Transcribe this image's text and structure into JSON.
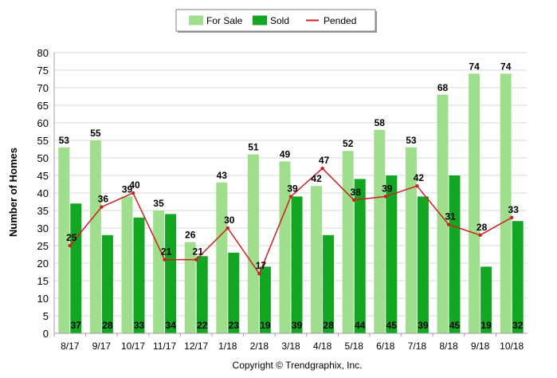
{
  "chart_data": {
    "type": "bar",
    "categories": [
      "8/17",
      "9/17",
      "10/17",
      "11/17",
      "12/17",
      "1/18",
      "2/18",
      "3/18",
      "4/18",
      "5/18",
      "6/18",
      "7/18",
      "8/18",
      "9/18",
      "10/18"
    ],
    "series": [
      {
        "name": "For Sale",
        "type": "bar",
        "color": "#9fde8c",
        "values": [
          53,
          55,
          39,
          35,
          26,
          43,
          51,
          49,
          42,
          52,
          58,
          53,
          68,
          74,
          74
        ]
      },
      {
        "name": "Sold",
        "type": "bar",
        "color": "#13a622",
        "values": [
          37,
          28,
          33,
          34,
          22,
          23,
          19,
          39,
          28,
          44,
          45,
          39,
          45,
          19,
          32
        ]
      },
      {
        "name": "Pended",
        "type": "line",
        "color": "#cc1f1f",
        "values": [
          25,
          36,
          40,
          21,
          21,
          30,
          17,
          39,
          47,
          38,
          39,
          42,
          31,
          28,
          33
        ]
      }
    ],
    "title": "",
    "xlabel": "",
    "ylabel": "Number of Homes",
    "ylim": [
      0,
      80
    ],
    "ytick_step": 5,
    "grid": true,
    "legend_position": "top-center"
  },
  "footer": {
    "copyright": "Copyright © Trendgraphix, Inc."
  }
}
